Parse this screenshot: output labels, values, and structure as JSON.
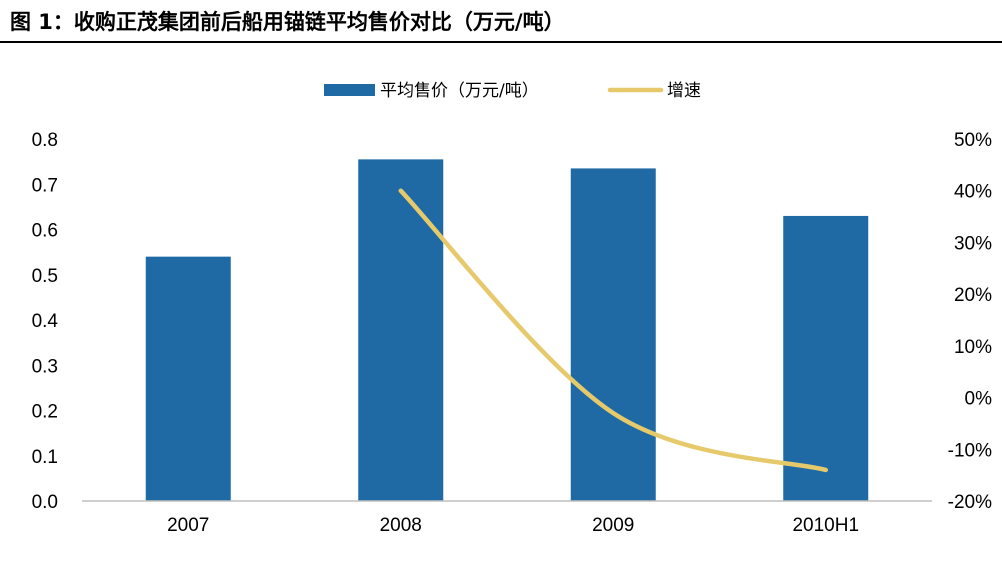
{
  "figure": {
    "title": "图 1：收购正茂集团前后船用锚链平均售价对比（万元/吨）"
  },
  "chart_data": {
    "type": "bar",
    "categories": [
      "2007",
      "2008",
      "2009",
      "2010H1"
    ],
    "series": [
      {
        "name": "平均售价（万元/吨）",
        "type": "bar",
        "axis": "left",
        "values": [
          0.54,
          0.755,
          0.735,
          0.63
        ],
        "color": "#1f6aa5"
      },
      {
        "name": "增速",
        "type": "line",
        "axis": "right",
        "values": [
          null,
          0.4,
          -0.03,
          -0.14
        ],
        "color": "#e6c96a"
      }
    ],
    "y_left": {
      "ylim": [
        0,
        0.8
      ],
      "ticks": [
        "0.0",
        "0.1",
        "0.2",
        "0.3",
        "0.4",
        "0.5",
        "0.6",
        "0.7",
        "0.8"
      ]
    },
    "y_right": {
      "ylim": [
        -0.2,
        0.5
      ],
      "ticks": [
        "-20%",
        "-10%",
        "0%",
        "10%",
        "20%",
        "30%",
        "40%",
        "50%"
      ]
    },
    "grid": false,
    "legend": "top-center"
  }
}
